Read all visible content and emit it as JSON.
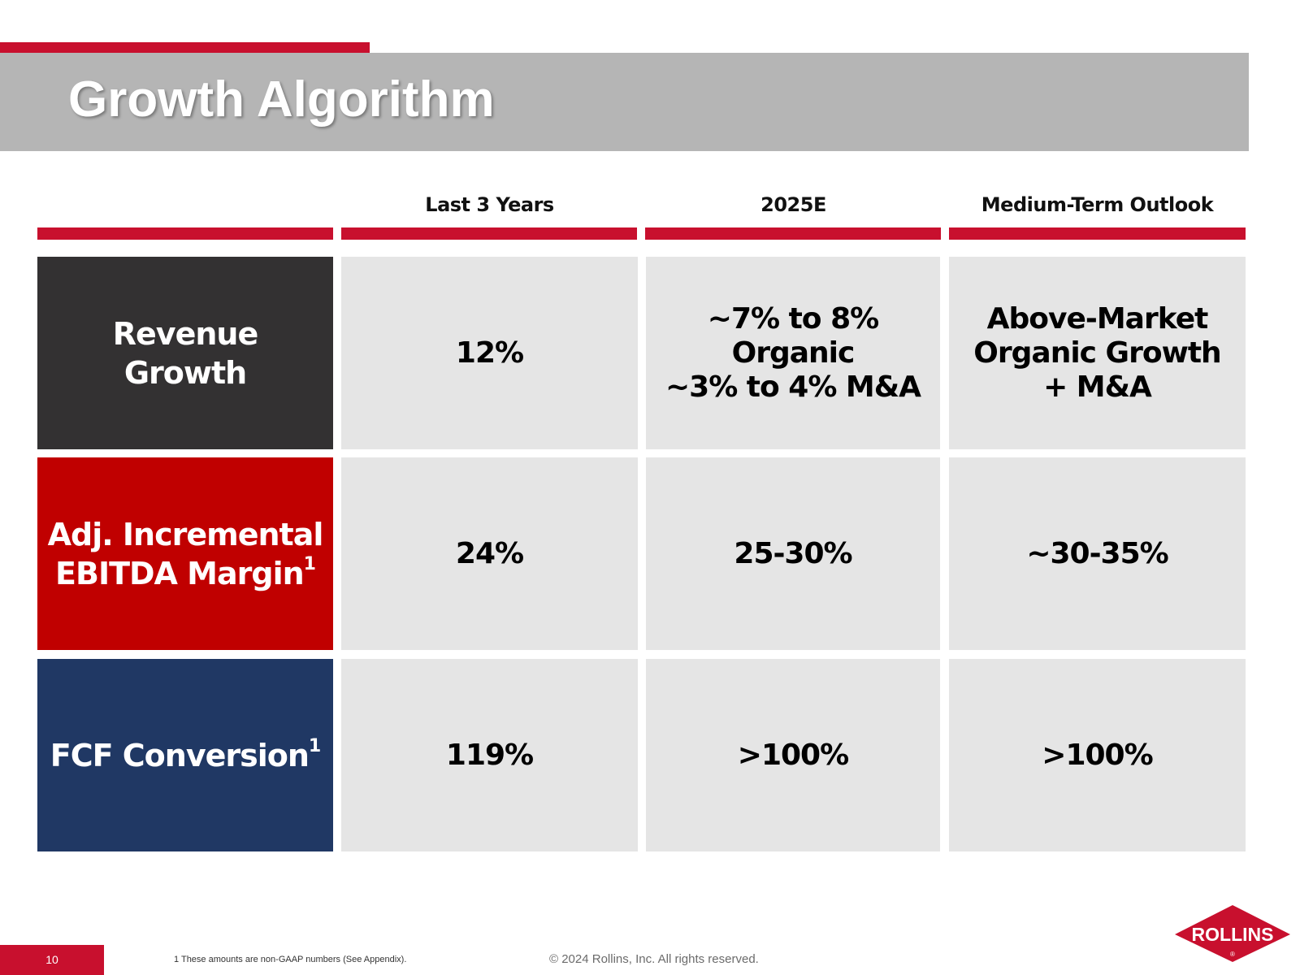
{
  "slide": {
    "title": "Growth Algorithm",
    "page_number": "10",
    "footnote": "1 These amounts are non-GAAP numbers (See Appendix).",
    "copyright": "© 2024 Rollins, Inc. All rights reserved."
  },
  "logo": {
    "text": "ROLLINS",
    "mark": "®",
    "color": "#c8102e"
  },
  "colors": {
    "accent_red": "#c8102e",
    "title_band": "#b5b5b5",
    "revenue_label_bg": "#333132",
    "ebitda_label_bg": "#c00000",
    "fcf_label_bg": "#203864",
    "value_cell_bg": "#e5e5e5"
  },
  "table": {
    "columns": [
      "Last 3 Years",
      "2025E",
      "Medium-Term Outlook"
    ],
    "rows": [
      {
        "label": "Revenue Growth",
        "label_sup": "",
        "values": [
          "12%",
          "~7% to 8% Organic\n~3% to 4% M&A",
          "Above-Market\nOrganic Growth\n+ M&A"
        ]
      },
      {
        "label": "Adj. Incremental\nEBITDA Margin",
        "label_sup": "1",
        "values": [
          "24%",
          "25-30%",
          "~30-35%"
        ]
      },
      {
        "label": "FCF Conversion",
        "label_sup": "1",
        "values": [
          "119%",
          ">100%",
          ">100%"
        ]
      }
    ]
  }
}
